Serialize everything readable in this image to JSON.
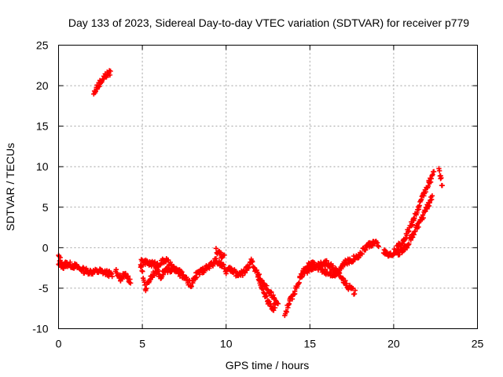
{
  "chart_data": {
    "type": "scatter",
    "title": "Day 133 of 2023, Sidereal Day-to-day VTEC variation (SDTVAR) for receiver p779",
    "xlabel": "GPS time / hours",
    "ylabel": "SDTVAR / TECUs",
    "xlim": [
      0,
      25
    ],
    "ylim": [
      -10,
      25
    ],
    "xticks": [
      0,
      5,
      10,
      15,
      20,
      25
    ],
    "yticks": [
      -10,
      -5,
      0,
      5,
      10,
      15,
      20,
      25
    ],
    "grid": true,
    "marker": "+",
    "color": "#ff0000",
    "series": [
      {
        "name": "SDTVAR",
        "segments": [
          {
            "x": [
              0.0,
              0.5,
              1.0,
              1.5,
              2.0,
              2.5,
              3.0,
              3.2
            ],
            "y": [
              -2.2,
              -2.0,
              -2.3,
              -2.8,
              -3.0,
              -2.9,
              -3.2,
              -3.4
            ]
          },
          {
            "x": [
              0.0,
              0.1,
              0.3
            ],
            "y": [
              -1.0,
              -1.5,
              -2.6
            ]
          },
          {
            "x": [
              2.1,
              2.3,
              2.5,
              2.7,
              2.9,
              3.1
            ],
            "y": [
              19.0,
              19.8,
              20.5,
              21.0,
              21.4,
              21.6
            ]
          },
          {
            "x": [
              3.4,
              3.7,
              4.0,
              4.3
            ],
            "y": [
              -2.8,
              -3.8,
              -3.2,
              -4.3
            ]
          },
          {
            "x": [
              4.9,
              5.2,
              5.5,
              5.8,
              6.1,
              6.4,
              6.7,
              7.0,
              7.3,
              7.6,
              7.9,
              8.2
            ],
            "y": [
              -2.2,
              -5.0,
              -3.6,
              -2.8,
              -3.5,
              -2.7,
              -3.0,
              -2.4,
              -3.2,
              -3.9,
              -4.6,
              -3.6
            ]
          },
          {
            "x": [
              4.9,
              5.4,
              5.9,
              6.4,
              6.9,
              7.4
            ],
            "y": [
              -1.8,
              -1.9,
              -2.1,
              -1.5,
              -2.7,
              -3.4
            ]
          },
          {
            "x": [
              8.2,
              8.6,
              9.0,
              9.4,
              9.7,
              10.0,
              10.3
            ],
            "y": [
              -3.4,
              -2.8,
              -2.3,
              -1.6,
              -2.0,
              -2.9,
              -2.6
            ]
          },
          {
            "x": [
              9.4,
              9.6,
              9.9
            ],
            "y": [
              -0.3,
              -0.7,
              -1.2
            ]
          },
          {
            "x": [
              10.3,
              10.7,
              11.1,
              11.5,
              11.9,
              12.3,
              12.7,
              13.1
            ],
            "y": [
              -2.7,
              -3.4,
              -3.0,
              -1.6,
              -3.4,
              -4.6,
              -5.8,
              -7.2
            ]
          },
          {
            "x": [
              11.9,
              12.2,
              12.5,
              12.8,
              13.0
            ],
            "y": [
              -3.6,
              -5.2,
              -6.6,
              -7.6,
              -6.8
            ]
          },
          {
            "x": [
              13.5,
              13.8,
              14.1,
              14.4,
              14.7,
              15.0,
              15.3
            ],
            "y": [
              -8.3,
              -6.6,
              -5.4,
              -3.8,
              -2.6,
              -2.0,
              -2.2
            ]
          },
          {
            "x": [
              14.5,
              15.0,
              15.5,
              16.0,
              16.5,
              17.0,
              17.3,
              17.7
            ],
            "y": [
              -3.4,
              -2.6,
              -2.2,
              -1.9,
              -2.7,
              -4.0,
              -4.8,
              -5.6
            ]
          },
          {
            "x": [
              15.5,
              16.0,
              16.5,
              17.0,
              17.5,
              18.0,
              18.4,
              18.8,
              19.1
            ],
            "y": [
              -2.5,
              -3.0,
              -3.3,
              -2.0,
              -1.5,
              -0.8,
              0.2,
              0.6,
              0.3
            ]
          },
          {
            "x": [
              19.4,
              19.7,
              20.0,
              20.3,
              20.6,
              20.9,
              21.2,
              21.5,
              21.8,
              22.1,
              22.4
            ],
            "y": [
              -0.3,
              -0.9,
              -0.6,
              0.2,
              1.0,
              2.2,
              3.5,
              5.0,
              6.6,
              8.0,
              9.2
            ]
          },
          {
            "x": [
              20.2,
              20.5,
              20.8,
              21.1,
              21.4,
              21.7,
              22.0,
              22.3
            ],
            "y": [
              -0.8,
              -0.4,
              0.3,
              1.4,
              2.6,
              3.6,
              5.0,
              6.2
            ]
          },
          {
            "x": [
              22.7,
              22.8,
              22.9
            ],
            "y": [
              9.6,
              8.6,
              7.7
            ]
          }
        ]
      }
    ]
  }
}
